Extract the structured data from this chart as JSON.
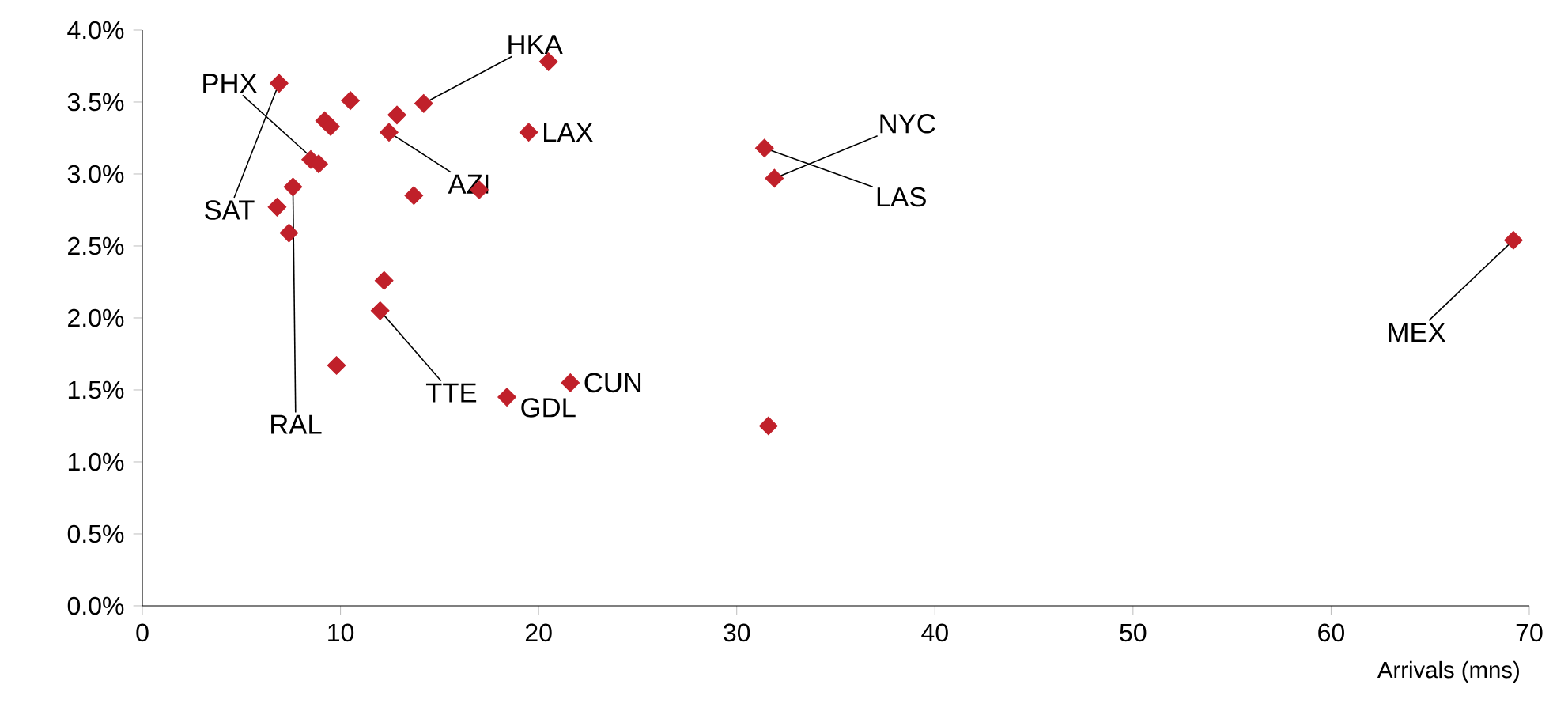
{
  "chart_data": {
    "type": "scatter",
    "xlabel": "Arrivals (mns)",
    "x": [
      6.9,
      10.5,
      9.2,
      9.5,
      12.85,
      14.2,
      12.45,
      20.5,
      19.5,
      8.5,
      8.9,
      7.6,
      6.8,
      7.4,
      13.7,
      17.0,
      12.2,
      12.0,
      9.8,
      18.4,
      21.6,
      31.4,
      31.9,
      31.6,
      69.2
    ],
    "series": [
      {
        "color": "#c0202a",
        "values": [
          3.63,
          3.51,
          3.37,
          3.33,
          3.41,
          3.49,
          3.29,
          3.78,
          3.29,
          3.1,
          3.07,
          2.91,
          2.77,
          2.59,
          2.85,
          2.89,
          2.26,
          2.05,
          1.67,
          1.45,
          1.55,
          3.18,
          2.97,
          1.25,
          2.54
        ]
      }
    ],
    "annotations": [
      {
        "text": "PHX",
        "x": 8.9,
        "y": 3.07
      },
      {
        "text": "SAT",
        "x": 6.9,
        "y": 3.63
      },
      {
        "text": "RAL",
        "x": 7.6,
        "y": 2.91
      },
      {
        "text": "HKA",
        "x": 14.2,
        "y": 3.49
      },
      {
        "text": "AZI",
        "x": 12.45,
        "y": 3.29
      },
      {
        "text": "LAX",
        "x": 19.5,
        "y": 3.29
      },
      {
        "text": "NYC",
        "x": 31.9,
        "y": 2.97
      },
      {
        "text": "LAS",
        "x": 31.4,
        "y": 3.18
      },
      {
        "text": "TTE",
        "x": 12.0,
        "y": 2.05
      },
      {
        "text": "GDL",
        "x": 18.4,
        "y": 1.45
      },
      {
        "text": "CUN",
        "x": 21.6,
        "y": 1.55
      },
      {
        "text": "MEX",
        "x": 69.2,
        "y": 2.54
      }
    ],
    "xlim": [
      0,
      70
    ],
    "xticks": [
      0,
      10,
      20,
      30,
      40,
      50,
      60,
      70
    ],
    "ylim": [
      0,
      4.0
    ],
    "yticks": [
      {
        "value": 0,
        "label": "0.0%"
      },
      {
        "value": 0.5,
        "label": "0.5%"
      },
      {
        "value": 1.0,
        "label": "1.0%"
      },
      {
        "value": 1.5,
        "label": "1.5%"
      },
      {
        "value": 2.0,
        "label": "2.0%"
      },
      {
        "value": 2.5,
        "label": "2.5%"
      },
      {
        "value": 3.0,
        "label": "3.0%"
      },
      {
        "value": 3.5,
        "label": "3.5%"
      },
      {
        "value": 4.0,
        "label": "4.0%"
      }
    ],
    "marker": "diamond"
  }
}
